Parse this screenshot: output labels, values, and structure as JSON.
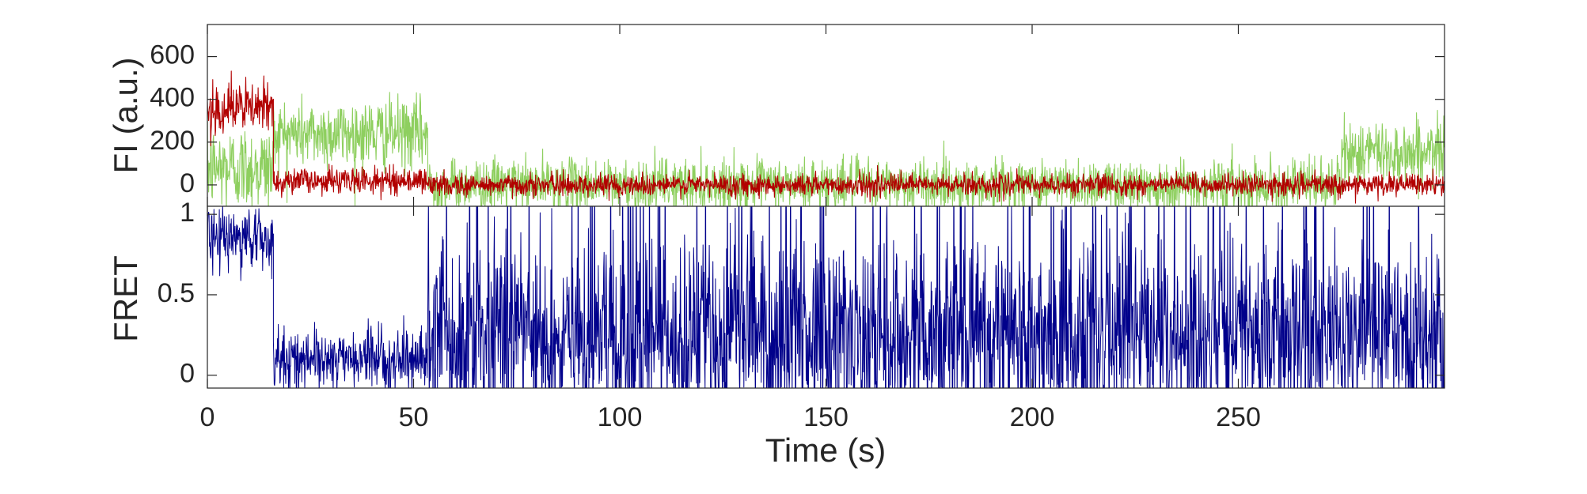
{
  "chart_data": [
    {
      "type": "line",
      "title": "",
      "xlabel": "",
      "ylabel": "FI (a.u.)",
      "xlim": [
        0,
        300
      ],
      "ylim": [
        -100,
        750
      ],
      "yticks": [
        0,
        200,
        400,
        600
      ],
      "ytick_labels": [
        "0",
        "200",
        "400",
        "600"
      ],
      "xtick_labels_shown": false,
      "grid": false,
      "legend": "none",
      "sample_interval_s": 0.1,
      "series": [
        {
          "color": "#8ecf5f",
          "segments": [
            {
              "x0": 0,
              "x1": 16,
              "mean": 80,
              "noise": 100
            },
            {
              "x0": 16,
              "x1": 53.5,
              "mean": 240,
              "noise": 80
            },
            {
              "x0": 53.5,
              "x1": 275,
              "mean": 0,
              "noise": 60
            },
            {
              "x0": 275,
              "x1": 300,
              "mean": 150,
              "noise": 75
            }
          ]
        },
        {
          "color": "#b20000",
          "segments": [
            {
              "x0": 0,
              "x1": 16,
              "mean": 360,
              "noise": 60
            },
            {
              "x0": 16,
              "x1": 53.5,
              "mean": 20,
              "noise": 30
            },
            {
              "x0": 53.5,
              "x1": 300,
              "mean": 0,
              "noise": 25
            }
          ]
        }
      ]
    },
    {
      "type": "line",
      "title": "",
      "xlabel": "Time (s)",
      "ylabel": "FRET",
      "xlim": [
        0,
        300
      ],
      "ylim": [
        -0.08,
        1.05
      ],
      "xticks": [
        0,
        50,
        100,
        150,
        200,
        250
      ],
      "xtick_labels": [
        "0",
        "50",
        "100",
        "150",
        "200",
        "250"
      ],
      "yticks": [
        0,
        0.5,
        1
      ],
      "ytick_labels": [
        "0",
        "0.5",
        "1"
      ],
      "grid": false,
      "legend": "none",
      "sample_interval_s": 0.1,
      "series": [
        {
          "color": "#00008b",
          "segments": [
            {
              "x0": 0,
              "x1": 16,
              "mean": 0.85,
              "noise": 0.1
            },
            {
              "x0": 16,
              "x1": 53.5,
              "mean": 0.1,
              "noise": 0.09
            },
            {
              "x0": 53.5,
              "x1": 300,
              "mean": 0.25,
              "noise": 0.3,
              "spike_rate": 0.035
            }
          ]
        }
      ]
    }
  ]
}
